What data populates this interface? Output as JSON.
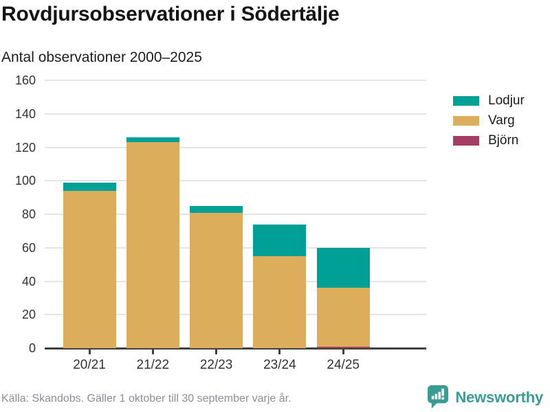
{
  "header": {
    "title": "Rovdjursobservationer i Södertälje",
    "subtitle": "Antal observationer 2000–2025"
  },
  "chart_data": {
    "type": "bar",
    "stacked": true,
    "title": "Rovdjursobservationer i Södertälje",
    "subtitle": "Antal observationer 2000–2025",
    "xlabel": "",
    "ylabel": "",
    "categories": [
      "20/21",
      "21/22",
      "22/23",
      "23/24",
      "24/25"
    ],
    "series": [
      {
        "name": "Lodjur",
        "color": "#00a096",
        "values": [
          5,
          3,
          4,
          19,
          24
        ]
      },
      {
        "name": "Varg",
        "color": "#dcae5c",
        "values": [
          94,
          123,
          81,
          55,
          35
        ]
      },
      {
        "name": "Björn",
        "color": "#a43d63",
        "values": [
          0,
          0,
          0,
          0,
          1
        ]
      }
    ],
    "stack_order_bottom_to_top": [
      "Björn",
      "Varg",
      "Lodjur"
    ],
    "totals": [
      99,
      126,
      85,
      74,
      60
    ],
    "ylim": [
      0,
      160
    ],
    "yticks": [
      0,
      20,
      40,
      60,
      80,
      100,
      120,
      140,
      160
    ],
    "grid": "horizontal",
    "legend_position": "right"
  },
  "footer": {
    "source": "Källa: Skandobs. Gäller 1 oktober till 30 september varje år.",
    "brand": "Newsworthy",
    "brand_color": "#3a9d95"
  }
}
